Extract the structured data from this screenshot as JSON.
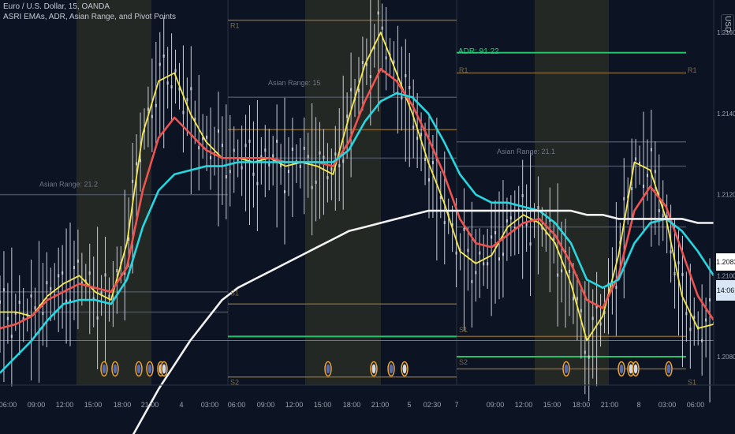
{
  "header": {
    "symbol_line": "Euro / U.S. Dollar, 15, OANDA",
    "indicator_line": "ASRI EMAs, ADR, Asian Range, and Pivot Points",
    "adr_label": "ADR: 91.22",
    "currency": "USD"
  },
  "badges": {
    "last_price": "1.2083",
    "countdown": "14:06"
  },
  "colors": {
    "background": "#0c1424",
    "session_highlight": "#2b2f25",
    "ema_fast": "#f5e94e",
    "ema_mid": "#ef5350",
    "ema_slow": "#26d7e0",
    "ema_long": "#f2f2f2",
    "candles": "#c8ccd6",
    "adr_line": "#22c46a",
    "pivot_line": "#8a6a3a",
    "asian_line": "#4d5566"
  },
  "chart_data": {
    "type": "line",
    "x_ticks": [
      "06:00",
      "09:00",
      "12:00",
      "15:00",
      "18:00",
      "21:00",
      "4",
      "03:00",
      "06:00",
      "09:00",
      "12:00",
      "15:00",
      "18:00",
      "21:00",
      "5",
      "02:30",
      "7",
      "09:00",
      "12:00",
      "15:00",
      "18:00",
      "21:00",
      "8",
      "03:00",
      "06:00"
    ],
    "y_ticks": [
      "1.2160",
      "1.2140",
      "1.2120",
      "1.2100",
      "1.2080"
    ],
    "ylim": [
      1.2073,
      1.2168
    ],
    "asian_range_labels": [
      "Asian Range: 21.2",
      "Asian Range: 15",
      "Asian Range: 21.1"
    ],
    "pivot_labels": [
      "R1",
      "S1",
      "S2",
      "R1",
      "S1",
      "S2",
      "R1",
      "S1"
    ],
    "series": [
      {
        "name": "",
        "color": "ema_fast",
        "values": [
          1.2091,
          1.2091,
          1.209,
          1.2095,
          1.2098,
          1.21,
          1.2096,
          1.2094,
          1.2108,
          1.2135,
          1.2148,
          1.215,
          1.214,
          1.2133,
          1.2129,
          1.2129,
          1.2128,
          1.2129,
          1.2127,
          1.2128,
          1.2127,
          1.2125,
          1.2139,
          1.2152,
          1.216,
          1.215,
          1.214,
          1.2128,
          1.2118,
          1.2106,
          1.2103,
          1.2105,
          1.2112,
          1.2115,
          1.2113,
          1.2108,
          1.2098,
          1.2084,
          1.209,
          1.2105,
          1.2128,
          1.2126,
          1.2114,
          1.2095,
          1.2087,
          1.2088
        ]
      },
      {
        "name": "",
        "color": "ema_mid",
        "values": [
          1.2087,
          1.2088,
          1.209,
          1.2094,
          1.2096,
          1.2098,
          1.2097,
          1.2096,
          1.2102,
          1.2121,
          1.2134,
          1.2139,
          1.2135,
          1.2131,
          1.2129,
          1.2129,
          1.2129,
          1.2129,
          1.2128,
          1.2128,
          1.2128,
          1.2127,
          1.2133,
          1.2143,
          1.2151,
          1.2148,
          1.2142,
          1.2134,
          1.2125,
          1.2114,
          1.2108,
          1.2107,
          1.211,
          1.2113,
          1.2114,
          1.211,
          1.2103,
          1.2094,
          1.2092,
          1.21,
          1.2116,
          1.2122,
          1.2117,
          1.2106,
          1.2095,
          1.2089
        ]
      },
      {
        "name": "",
        "color": "ema_slow",
        "values": [
          1.2076,
          1.208,
          1.2084,
          1.2089,
          1.2093,
          1.2094,
          1.2094,
          1.2093,
          1.2099,
          1.2112,
          1.2121,
          1.2125,
          1.2126,
          1.2127,
          1.2127,
          1.2128,
          1.2128,
          1.2128,
          1.2128,
          1.2128,
          1.2128,
          1.2128,
          1.2131,
          1.2138,
          1.2143,
          1.2145,
          1.2144,
          1.214,
          1.2133,
          1.2125,
          1.212,
          1.2118,
          1.2118,
          1.2117,
          1.2116,
          1.2113,
          1.2108,
          1.2099,
          1.2097,
          1.2099,
          1.2108,
          1.2113,
          1.2114,
          1.2111,
          1.2106,
          1.21
        ]
      },
      {
        "name": "",
        "color": "ema_long",
        "values": [
          null,
          null,
          null,
          null,
          null,
          null,
          null,
          null,
          1.2058,
          1.2065,
          1.2072,
          1.2078,
          1.2084,
          1.2089,
          1.2094,
          1.2097,
          1.2099,
          1.2101,
          1.2103,
          1.2105,
          1.2107,
          1.2109,
          1.2111,
          1.2112,
          1.2113,
          1.2114,
          1.2115,
          1.2116,
          1.2116,
          1.2116,
          1.2116,
          1.2116,
          1.2116,
          1.2116,
          1.2116,
          1.2116,
          1.2116,
          1.2115,
          1.2115,
          1.2114,
          1.2114,
          1.2114,
          1.2114,
          1.2114,
          1.2113,
          1.2113
        ]
      }
    ],
    "grid": false,
    "legend": "none"
  }
}
